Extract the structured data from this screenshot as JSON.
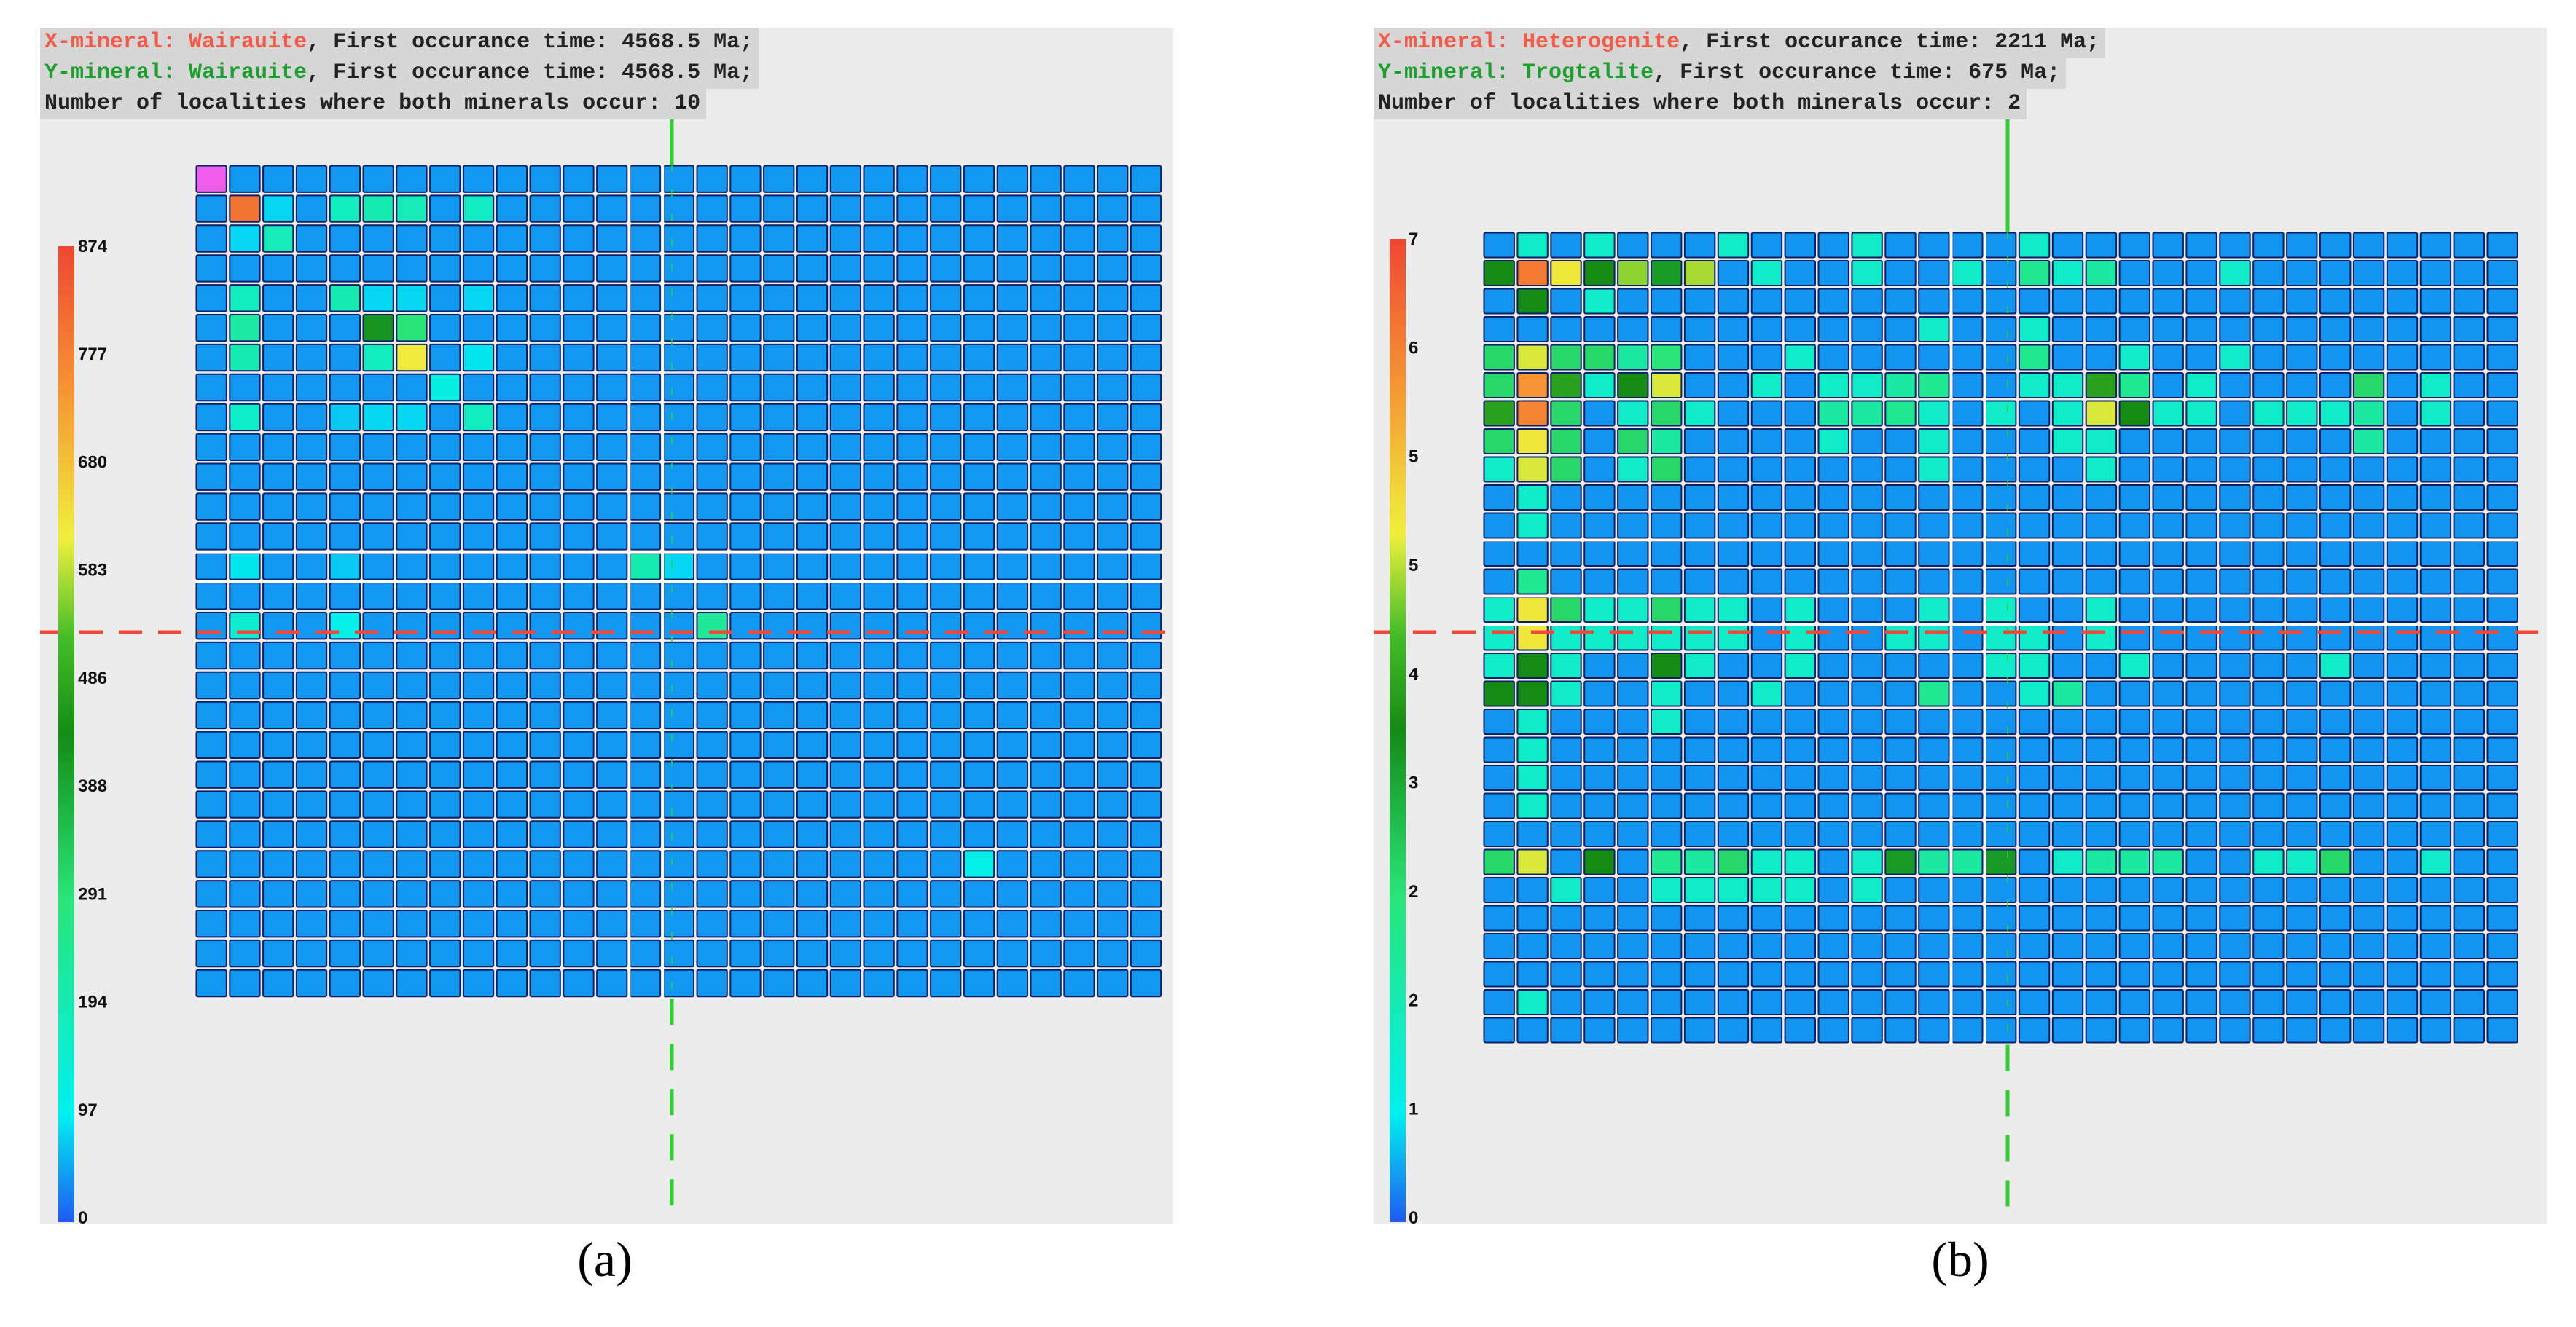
{
  "panels": [
    {
      "id": "a",
      "label": "(a)",
      "info": {
        "x_prefix": "X-mineral: ",
        "x_mineral": "Wairauite",
        "x_suffix": ", First occurance time: 4568.5 Ma;",
        "y_prefix": "Y-mineral: ",
        "y_mineral": "Wairauite",
        "y_suffix": ", First occurance time: 4568.5 Ma;",
        "count_line": "Number of localities where both minerals occur: 10"
      }
    },
    {
      "id": "b",
      "label": "(b)",
      "info": {
        "x_prefix": "X-mineral: ",
        "x_mineral": "Heterogenite",
        "x_suffix": ", First occurance time: 2211 Ma;",
        "y_prefix": "Y-mineral: ",
        "y_mineral": "Trogtalite",
        "y_suffix": ", First occurance time: 675 Ma;",
        "count_line": "Number of localities where both minerals occur: 2"
      }
    }
  ],
  "chart_data": [
    {
      "type": "heatmap",
      "panel": "a",
      "rows": 28,
      "cols": 29,
      "colorbar": {
        "min": 0,
        "max": 874,
        "tick_labels": [
          "874",
          "777",
          "680",
          "583",
          "486",
          "388",
          "291",
          "194",
          "97",
          "0"
        ]
      },
      "base_value": 40,
      "cells": [
        {
          "r": 0,
          "c": 0,
          "v": 874,
          "highlight": true
        },
        {
          "r": 1,
          "c": 1,
          "v": 800
        },
        {
          "r": 1,
          "c": 2,
          "v": 80
        },
        {
          "r": 1,
          "c": 4,
          "v": 180
        },
        {
          "r": 1,
          "c": 5,
          "v": 200
        },
        {
          "r": 1,
          "c": 6,
          "v": 190
        },
        {
          "r": 1,
          "c": 8,
          "v": 170
        },
        {
          "r": 2,
          "c": 1,
          "v": 80
        },
        {
          "r": 2,
          "c": 2,
          "v": 190
        },
        {
          "r": 4,
          "c": 1,
          "v": 180
        },
        {
          "r": 4,
          "c": 4,
          "v": 200
        },
        {
          "r": 4,
          "c": 5,
          "v": 80
        },
        {
          "r": 4,
          "c": 6,
          "v": 80
        },
        {
          "r": 4,
          "c": 8,
          "v": 80
        },
        {
          "r": 5,
          "c": 1,
          "v": 220
        },
        {
          "r": 5,
          "c": 5,
          "v": 420
        },
        {
          "r": 5,
          "c": 6,
          "v": 290
        },
        {
          "r": 6,
          "c": 1,
          "v": 200
        },
        {
          "r": 6,
          "c": 5,
          "v": 180
        },
        {
          "r": 6,
          "c": 6,
          "v": 620
        },
        {
          "r": 6,
          "c": 8,
          "v": 90
        },
        {
          "r": 7,
          "c": 7,
          "v": 120
        },
        {
          "r": 8,
          "c": 1,
          "v": 160
        },
        {
          "r": 8,
          "c": 4,
          "v": 70
        },
        {
          "r": 8,
          "c": 5,
          "v": 80
        },
        {
          "r": 8,
          "c": 6,
          "v": 80
        },
        {
          "r": 8,
          "c": 8,
          "v": 180
        },
        {
          "r": 13,
          "c": 1,
          "v": 90
        },
        {
          "r": 13,
          "c": 4,
          "v": 70
        },
        {
          "r": 13,
          "c": 13,
          "v": 200
        },
        {
          "r": 13,
          "c": 14,
          "v": 80
        },
        {
          "r": 15,
          "c": 1,
          "v": 150
        },
        {
          "r": 15,
          "c": 4,
          "v": 110
        },
        {
          "r": 15,
          "c": 15,
          "v": 240
        },
        {
          "r": 23,
          "c": 23,
          "v": 110
        }
      ]
    },
    {
      "type": "heatmap",
      "panel": "b",
      "rows": 29,
      "cols": 31,
      "colorbar": {
        "min": 0,
        "max": 7,
        "tick_labels": [
          "7",
          "6",
          "5",
          "5",
          "4",
          "3",
          "2",
          "2",
          "1",
          "0"
        ]
      },
      "base_value": 0.3,
      "cells": [
        {
          "r": 0,
          "c": 1,
          "v": 1.3
        },
        {
          "r": 0,
          "c": 3,
          "v": 1.3
        },
        {
          "r": 0,
          "c": 7,
          "v": 1.3
        },
        {
          "r": 0,
          "c": 11,
          "v": 1.3
        },
        {
          "r": 0,
          "c": 16,
          "v": 1.3
        },
        {
          "r": 1,
          "c": 0,
          "v": 3.5
        },
        {
          "r": 1,
          "c": 1,
          "v": 6.3
        },
        {
          "r": 1,
          "c": 2,
          "v": 5
        },
        {
          "r": 1,
          "c": 3,
          "v": 3.5
        },
        {
          "r": 1,
          "c": 4,
          "v": 4.5
        },
        {
          "r": 1,
          "c": 5,
          "v": 3.3
        },
        {
          "r": 1,
          "c": 6,
          "v": 4.6
        },
        {
          "r": 1,
          "c": 8,
          "v": 1.3
        },
        {
          "r": 1,
          "c": 11,
          "v": 1.3
        },
        {
          "r": 1,
          "c": 14,
          "v": 1.3
        },
        {
          "r": 1,
          "c": 16,
          "v": 2
        },
        {
          "r": 1,
          "c": 17,
          "v": 1.3
        },
        {
          "r": 1,
          "c": 18,
          "v": 1.8
        },
        {
          "r": 1,
          "c": 22,
          "v": 1.3
        },
        {
          "r": 2,
          "c": 1,
          "v": 3.5
        },
        {
          "r": 2,
          "c": 3,
          "v": 1.3
        },
        {
          "r": 3,
          "c": 13,
          "v": 1.3
        },
        {
          "r": 3,
          "c": 16,
          "v": 1.3
        },
        {
          "r": 4,
          "c": 0,
          "v": 2.5
        },
        {
          "r": 4,
          "c": 1,
          "v": 4.8
        },
        {
          "r": 4,
          "c": 2,
          "v": 2.5
        },
        {
          "r": 4,
          "c": 3,
          "v": 2.5
        },
        {
          "r": 4,
          "c": 4,
          "v": 1.8
        },
        {
          "r": 4,
          "c": 5,
          "v": 2.3
        },
        {
          "r": 4,
          "c": 9,
          "v": 1.3
        },
        {
          "r": 4,
          "c": 16,
          "v": 2
        },
        {
          "r": 4,
          "c": 19,
          "v": 1.3
        },
        {
          "r": 4,
          "c": 22,
          "v": 1.3
        },
        {
          "r": 5,
          "c": 0,
          "v": 2.5
        },
        {
          "r": 5,
          "c": 1,
          "v": 6
        },
        {
          "r": 5,
          "c": 2,
          "v": 3.8
        },
        {
          "r": 5,
          "c": 3,
          "v": 1.3
        },
        {
          "r": 5,
          "c": 4,
          "v": 3.5
        },
        {
          "r": 5,
          "c": 5,
          "v": 4.8
        },
        {
          "r": 5,
          "c": 8,
          "v": 1.3
        },
        {
          "r": 5,
          "c": 10,
          "v": 1.3
        },
        {
          "r": 5,
          "c": 11,
          "v": 1.3
        },
        {
          "r": 5,
          "c": 12,
          "v": 1.8
        },
        {
          "r": 5,
          "c": 13,
          "v": 2
        },
        {
          "r": 5,
          "c": 16,
          "v": 1.3
        },
        {
          "r": 5,
          "c": 17,
          "v": 1.3
        },
        {
          "r": 5,
          "c": 18,
          "v": 3.8
        },
        {
          "r": 5,
          "c": 19,
          "v": 2
        },
        {
          "r": 5,
          "c": 21,
          "v": 1.3
        },
        {
          "r": 5,
          "c": 26,
          "v": 2.5
        },
        {
          "r": 5,
          "c": 28,
          "v": 1.3
        },
        {
          "r": 6,
          "c": 0,
          "v": 3.8
        },
        {
          "r": 6,
          "c": 1,
          "v": 6.2
        },
        {
          "r": 6,
          "c": 2,
          "v": 2.5
        },
        {
          "r": 6,
          "c": 4,
          "v": 1.3
        },
        {
          "r": 6,
          "c": 5,
          "v": 2.5
        },
        {
          "r": 6,
          "c": 6,
          "v": 1.3
        },
        {
          "r": 6,
          "c": 10,
          "v": 1.8
        },
        {
          "r": 6,
          "c": 11,
          "v": 1.8
        },
        {
          "r": 6,
          "c": 12,
          "v": 2
        },
        {
          "r": 6,
          "c": 13,
          "v": 1.3
        },
        {
          "r": 6,
          "c": 15,
          "v": 1.3
        },
        {
          "r": 6,
          "c": 17,
          "v": 1.3
        },
        {
          "r": 6,
          "c": 18,
          "v": 4.8
        },
        {
          "r": 6,
          "c": 19,
          "v": 3.5
        },
        {
          "r": 6,
          "c": 20,
          "v": 1.3
        },
        {
          "r": 6,
          "c": 21,
          "v": 1.3
        },
        {
          "r": 6,
          "c": 23,
          "v": 1.3
        },
        {
          "r": 6,
          "c": 24,
          "v": 1.3
        },
        {
          "r": 6,
          "c": 25,
          "v": 1.3
        },
        {
          "r": 6,
          "c": 26,
          "v": 1.8
        },
        {
          "r": 6,
          "c": 28,
          "v": 1.3
        },
        {
          "r": 7,
          "c": 0,
          "v": 2.5
        },
        {
          "r": 7,
          "c": 1,
          "v": 5
        },
        {
          "r": 7,
          "c": 2,
          "v": 2.5
        },
        {
          "r": 7,
          "c": 4,
          "v": 2.5
        },
        {
          "r": 7,
          "c": 5,
          "v": 1.8
        },
        {
          "r": 7,
          "c": 10,
          "v": 1.3
        },
        {
          "r": 7,
          "c": 13,
          "v": 1.3
        },
        {
          "r": 7,
          "c": 17,
          "v": 1.3
        },
        {
          "r": 7,
          "c": 18,
          "v": 1.3
        },
        {
          "r": 7,
          "c": 26,
          "v": 1.8
        },
        {
          "r": 8,
          "c": 0,
          "v": 1.3
        },
        {
          "r": 8,
          "c": 1,
          "v": 4.8
        },
        {
          "r": 8,
          "c": 2,
          "v": 2.5
        },
        {
          "r": 8,
          "c": 4,
          "v": 1.3
        },
        {
          "r": 8,
          "c": 5,
          "v": 2.5
        },
        {
          "r": 8,
          "c": 13,
          "v": 1.3
        },
        {
          "r": 8,
          "c": 18,
          "v": 1.3
        },
        {
          "r": 9,
          "c": 1,
          "v": 1.3
        },
        {
          "r": 10,
          "c": 1,
          "v": 1.3
        },
        {
          "r": 12,
          "c": 1,
          "v": 2
        },
        {
          "r": 13,
          "c": 0,
          "v": 1.3
        },
        {
          "r": 13,
          "c": 1,
          "v": 5
        },
        {
          "r": 13,
          "c": 2,
          "v": 2.5
        },
        {
          "r": 13,
          "c": 3,
          "v": 1.3
        },
        {
          "r": 13,
          "c": 4,
          "v": 1.3
        },
        {
          "r": 13,
          "c": 5,
          "v": 2.5
        },
        {
          "r": 13,
          "c": 6,
          "v": 1.3
        },
        {
          "r": 13,
          "c": 7,
          "v": 1.3
        },
        {
          "r": 13,
          "c": 9,
          "v": 1.3
        },
        {
          "r": 13,
          "c": 13,
          "v": 1.3
        },
        {
          "r": 13,
          "c": 15,
          "v": 1.3
        },
        {
          "r": 13,
          "c": 18,
          "v": 1.3
        },
        {
          "r": 14,
          "c": 0,
          "v": 1.3
        },
        {
          "r": 14,
          "c": 1,
          "v": 5
        },
        {
          "r": 14,
          "c": 2,
          "v": 1.3
        },
        {
          "r": 14,
          "c": 3,
          "v": 1.3
        },
        {
          "r": 14,
          "c": 4,
          "v": 1.3
        },
        {
          "r": 14,
          "c": 5,
          "v": 1.3
        },
        {
          "r": 14,
          "c": 6,
          "v": 1.3
        },
        {
          "r": 14,
          "c": 7,
          "v": 1.3
        },
        {
          "r": 14,
          "c": 9,
          "v": 1.3
        },
        {
          "r": 14,
          "c": 12,
          "v": 1.3
        },
        {
          "r": 14,
          "c": 13,
          "v": 1.3
        },
        {
          "r": 14,
          "c": 15,
          "v": 1.3
        },
        {
          "r": 14,
          "c": 16,
          "v": 1.3
        },
        {
          "r": 14,
          "c": 18,
          "v": 1.3
        },
        {
          "r": 15,
          "c": 0,
          "v": 1.3
        },
        {
          "r": 15,
          "c": 1,
          "v": 3.5
        },
        {
          "r": 15,
          "c": 2,
          "v": 1.3
        },
        {
          "r": 15,
          "c": 5,
          "v": 3.5
        },
        {
          "r": 15,
          "c": 6,
          "v": 1.3
        },
        {
          "r": 15,
          "c": 9,
          "v": 1.3
        },
        {
          "r": 15,
          "c": 15,
          "v": 1.3
        },
        {
          "r": 15,
          "c": 16,
          "v": 1.3
        },
        {
          "r": 15,
          "c": 19,
          "v": 1.3
        },
        {
          "r": 15,
          "c": 25,
          "v": 1.3
        },
        {
          "r": 16,
          "c": 0,
          "v": 3.5
        },
        {
          "r": 16,
          "c": 1,
          "v": 3.5
        },
        {
          "r": 16,
          "c": 2,
          "v": 1.3
        },
        {
          "r": 16,
          "c": 5,
          "v": 1.3
        },
        {
          "r": 16,
          "c": 8,
          "v": 1.3
        },
        {
          "r": 16,
          "c": 13,
          "v": 2
        },
        {
          "r": 16,
          "c": 16,
          "v": 1.3
        },
        {
          "r": 16,
          "c": 17,
          "v": 1.8
        },
        {
          "r": 17,
          "c": 1,
          "v": 1.3
        },
        {
          "r": 17,
          "c": 5,
          "v": 1.3
        },
        {
          "r": 18,
          "c": 1,
          "v": 1.3
        },
        {
          "r": 19,
          "c": 1,
          "v": 1.3
        },
        {
          "r": 20,
          "c": 1,
          "v": 1.3
        },
        {
          "r": 22,
          "c": 0,
          "v": 2.5
        },
        {
          "r": 22,
          "c": 1,
          "v": 4.8
        },
        {
          "r": 22,
          "c": 3,
          "v": 3.5
        },
        {
          "r": 22,
          "c": 5,
          "v": 2
        },
        {
          "r": 22,
          "c": 6,
          "v": 1.8
        },
        {
          "r": 22,
          "c": 7,
          "v": 2.5
        },
        {
          "r": 22,
          "c": 8,
          "v": 1.3
        },
        {
          "r": 22,
          "c": 9,
          "v": 1.3
        },
        {
          "r": 22,
          "c": 11,
          "v": 1.3
        },
        {
          "r": 22,
          "c": 12,
          "v": 3.3
        },
        {
          "r": 22,
          "c": 13,
          "v": 1.8
        },
        {
          "r": 22,
          "c": 14,
          "v": 1.8
        },
        {
          "r": 22,
          "c": 15,
          "v": 3.3
        },
        {
          "r": 22,
          "c": 17,
          "v": 1.3
        },
        {
          "r": 22,
          "c": 18,
          "v": 1.8
        },
        {
          "r": 22,
          "c": 19,
          "v": 1.8
        },
        {
          "r": 22,
          "c": 20,
          "v": 1.8
        },
        {
          "r": 22,
          "c": 23,
          "v": 1.3
        },
        {
          "r": 22,
          "c": 24,
          "v": 1.3
        },
        {
          "r": 22,
          "c": 25,
          "v": 2.5
        },
        {
          "r": 22,
          "c": 28,
          "v": 1.3
        },
        {
          "r": 23,
          "c": 2,
          "v": 1.3
        },
        {
          "r": 23,
          "c": 5,
          "v": 1.3
        },
        {
          "r": 23,
          "c": 6,
          "v": 1.3
        },
        {
          "r": 23,
          "c": 7,
          "v": 1.3
        },
        {
          "r": 23,
          "c": 8,
          "v": 1.3
        },
        {
          "r": 23,
          "c": 9,
          "v": 1.3
        },
        {
          "r": 23,
          "c": 11,
          "v": 1.3
        },
        {
          "r": 27,
          "c": 1,
          "v": 1.3
        }
      ]
    }
  ],
  "colors": {
    "background": "#ececec",
    "base_cell": "#1e5af2",
    "grid_gap": "#ffffff",
    "vertical_line": "#2ed22e",
    "horizontal_line": "#f0493c",
    "highlight_cell": "#ee5ee8",
    "x_mineral_text": "#f25a4a",
    "y_mineral_text": "#1c9f2c"
  }
}
